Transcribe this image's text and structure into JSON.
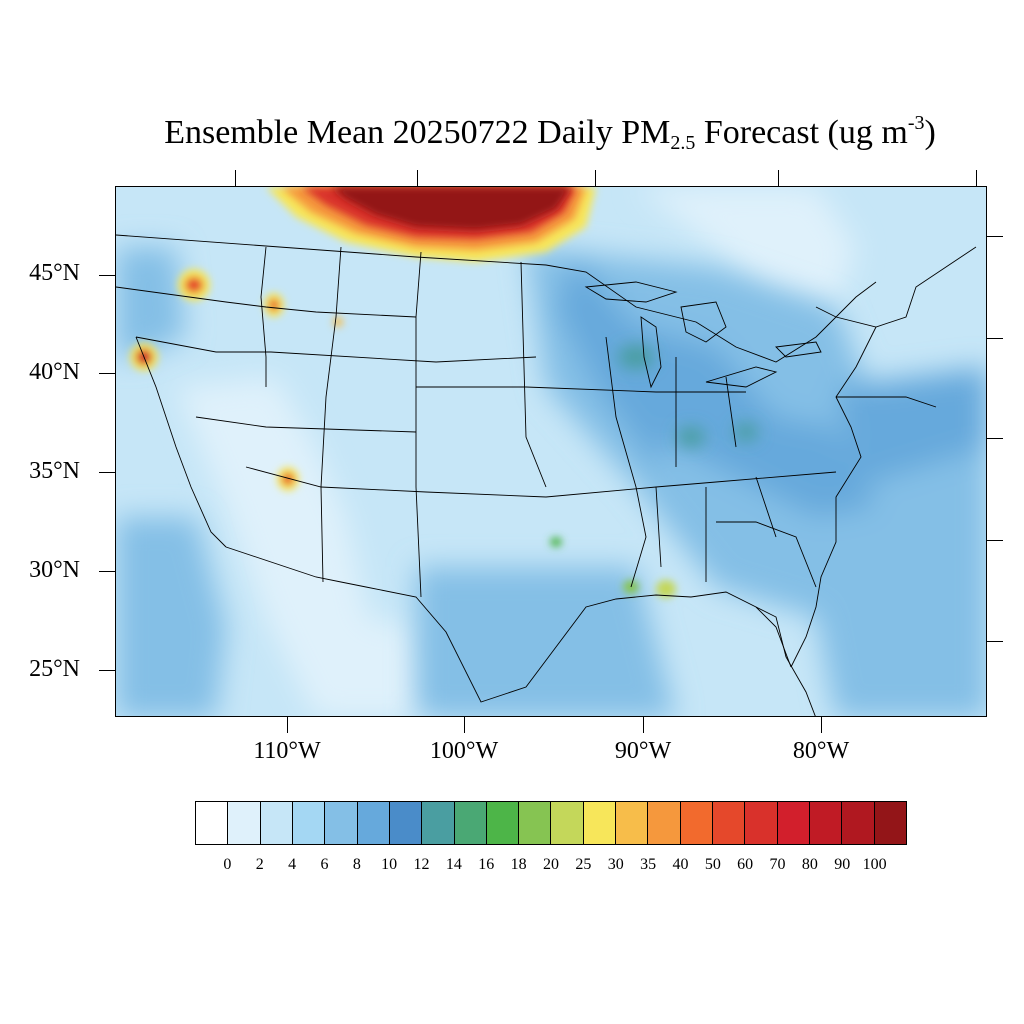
{
  "title": {
    "prefix": "Ensemble Mean 20250722 Daily PM",
    "sub": "2.5",
    "middle": " Forecast (ug m",
    "sup": "-3",
    "suffix": ")"
  },
  "lat_labels": [
    "45°N",
    "40°N",
    "35°N",
    "30°N",
    "25°N"
  ],
  "lon_labels": [
    "110°W",
    "100°W",
    "90°W",
    "80°W"
  ],
  "legend": {
    "labels": [
      "0",
      "2",
      "4",
      "6",
      "8",
      "10",
      "12",
      "14",
      "16",
      "18",
      "20",
      "25",
      "30",
      "35",
      "40",
      "50",
      "60",
      "70",
      "80",
      "90",
      "100"
    ],
    "colors": [
      "#ffffff",
      "#dff1fb",
      "#c6e6f7",
      "#a4d7f3",
      "#84bfe6",
      "#66a9dc",
      "#4a8cc9",
      "#4a9ea1",
      "#4aa874",
      "#4db548",
      "#86c452",
      "#c4d75a",
      "#f7e65a",
      "#f7bd4a",
      "#f5983d",
      "#f26a2d",
      "#e5482b",
      "#d9312b",
      "#d21f2c",
      "#c01b25",
      "#b01820",
      "#931518"
    ]
  },
  "map": {
    "background_color": "#c6e6f7",
    "plume_color": "#931518"
  }
}
